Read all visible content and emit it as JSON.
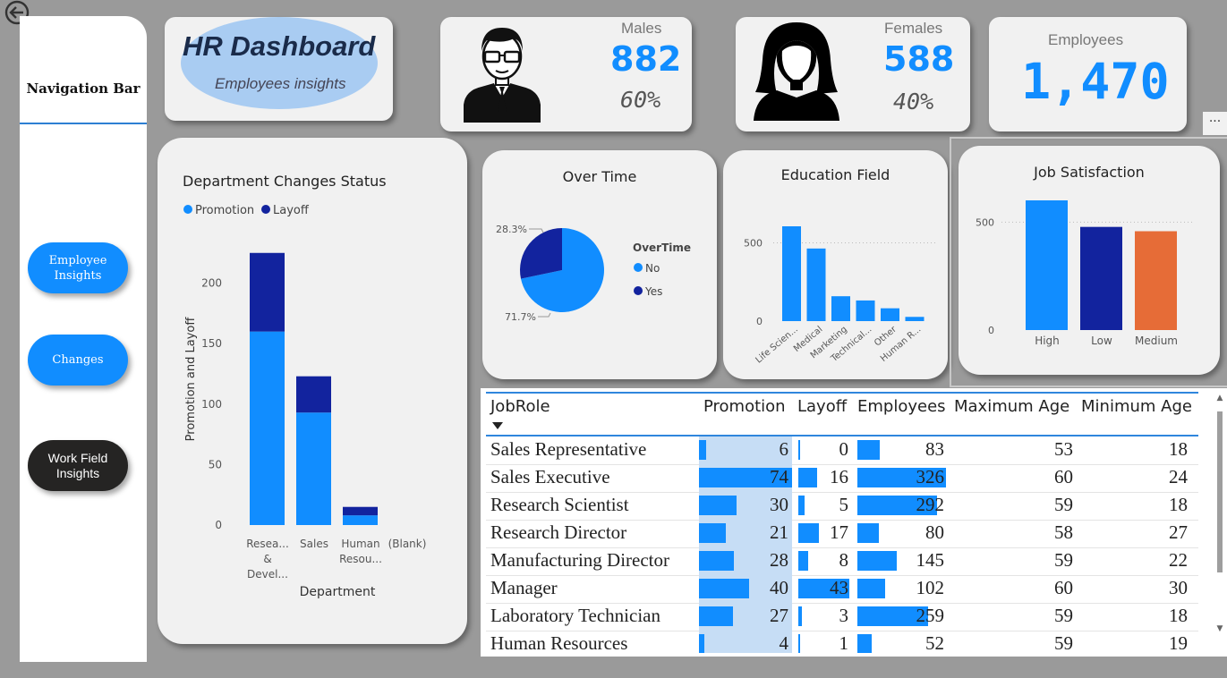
{
  "nav": {
    "title": "Navigation Bar",
    "buttons": [
      {
        "label_line1": "Employee",
        "label_line2": "Insights"
      },
      {
        "label_line1": "Changes",
        "label_line2": ""
      },
      {
        "label_line1": "Work Field",
        "label_line2": "Insights"
      }
    ]
  },
  "header": {
    "title": "HR Dashboard",
    "subtitle": "Employees insights"
  },
  "kpis": {
    "males": {
      "label": "Males",
      "value": "882",
      "percent": "60%"
    },
    "females": {
      "label": "Females",
      "value": "588",
      "percent": "40%"
    },
    "employees": {
      "label": "Employees",
      "value": "1,470"
    }
  },
  "more_label": "···",
  "colors": {
    "primary": "#118dff",
    "dark": "#12239e",
    "orange": "#e66c37"
  },
  "chart_data": [
    {
      "type": "bar",
      "stacked": true,
      "title": "Department Changes Status",
      "xlabel": "Department",
      "ylabel": "Promotion and Layoff",
      "legend_position": "top-left",
      "categories": [
        [
          "Resea...",
          "&",
          "Devel..."
        ],
        [
          "Sales"
        ],
        [
          "Human",
          "Resou..."
        ],
        [
          "(Blank)"
        ]
      ],
      "series": [
        {
          "name": "Promotion",
          "color": "#118dff",
          "values": [
            160,
            93,
            8,
            0
          ]
        },
        {
          "name": "Layoff",
          "color": "#12239e",
          "values": [
            65,
            30,
            7,
            0
          ]
        }
      ],
      "yticks": [
        0,
        50,
        100,
        150,
        200
      ],
      "ylim": [
        0,
        230
      ]
    },
    {
      "type": "pie",
      "title": "Over Time",
      "legend_title": "OverTime",
      "slices": [
        {
          "name": "No",
          "value": 71.7,
          "label": "71.7%",
          "color": "#118dff"
        },
        {
          "name": "Yes",
          "value": 28.3,
          "label": "28.3%",
          "color": "#12239e"
        }
      ]
    },
    {
      "type": "bar",
      "title": "Education Field",
      "categories": [
        "Life Scien...",
        "Medical",
        "Marketing",
        "Technical...",
        "Other",
        "Human R..."
      ],
      "values": [
        606,
        464,
        159,
        132,
        82,
        27
      ],
      "yticks": [
        0,
        500
      ],
      "ylim": [
        0,
        700
      ],
      "color": "#118dff"
    },
    {
      "type": "bar",
      "title": "Job Satisfaction",
      "categories": [
        "High",
        "Low",
        "Medium"
      ],
      "values": [
        601,
        478,
        458
      ],
      "colors": [
        "#118dff",
        "#12239e",
        "#e66c37"
      ],
      "yticks": [
        0,
        500
      ],
      "ylim": [
        0,
        650
      ]
    }
  ],
  "table": {
    "headers": [
      "JobRole",
      "Promotion",
      "Layoff",
      "Employees",
      "Maximum Age",
      "Minimum Age"
    ],
    "rows": [
      {
        "role": "Sales Representative",
        "promotion": "6",
        "layoff": "0",
        "employees": "83",
        "max_age": "53",
        "min_age": "18"
      },
      {
        "role": "Sales Executive",
        "promotion": "74",
        "layoff": "16",
        "employees": "326",
        "max_age": "60",
        "min_age": "24"
      },
      {
        "role": "Research Scientist",
        "promotion": "30",
        "layoff": "5",
        "employees": "292",
        "max_age": "59",
        "min_age": "18"
      },
      {
        "role": "Research Director",
        "promotion": "21",
        "layoff": "17",
        "employees": "80",
        "max_age": "58",
        "min_age": "27"
      },
      {
        "role": "Manufacturing Director",
        "promotion": "28",
        "layoff": "8",
        "employees": "145",
        "max_age": "59",
        "min_age": "22"
      },
      {
        "role": "Manager",
        "promotion": "40",
        "layoff": "43",
        "employees": "102",
        "max_age": "60",
        "min_age": "30"
      },
      {
        "role": "Laboratory Technician",
        "promotion": "27",
        "layoff": "3",
        "employees": "259",
        "max_age": "59",
        "min_age": "18"
      },
      {
        "role": "Human Resources",
        "promotion": "4",
        "layoff": "1",
        "employees": "52",
        "max_age": "59",
        "min_age": "19"
      }
    ]
  }
}
